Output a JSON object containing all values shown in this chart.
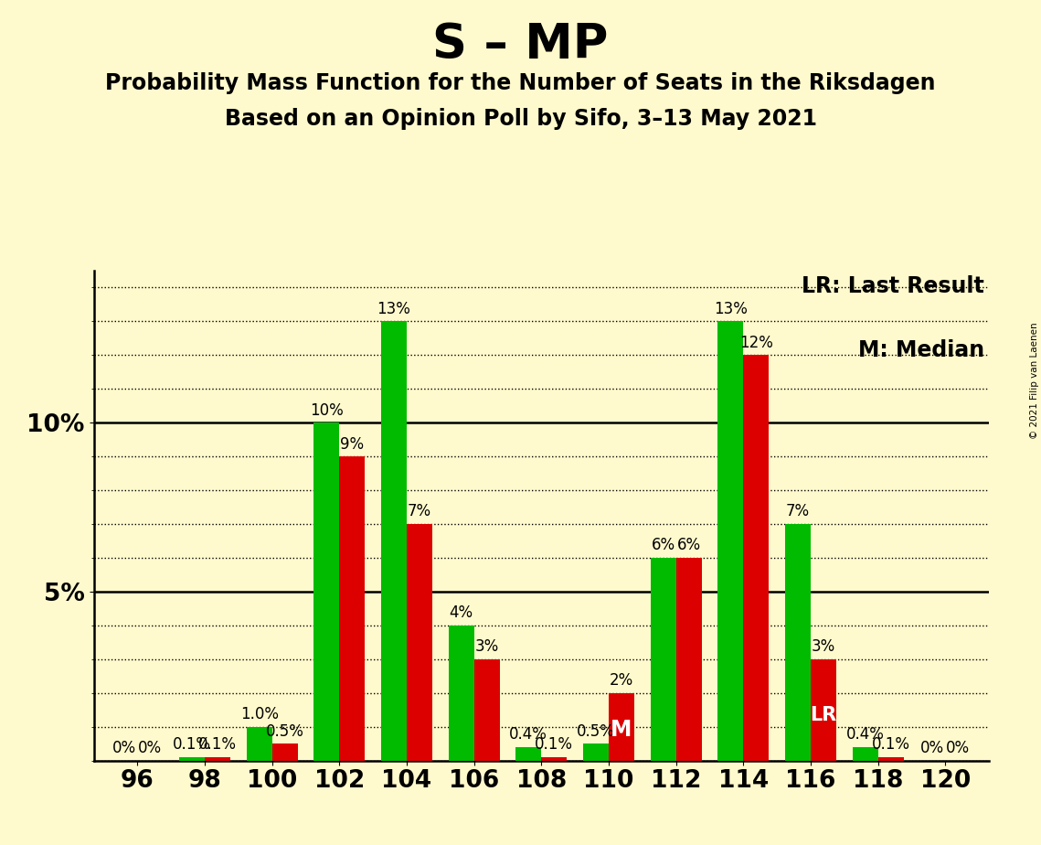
{
  "title": "S – MP",
  "subtitle1": "Probability Mass Function for the Number of Seats in the Riksdagen",
  "subtitle2": "Based on an Opinion Poll by Sifo, 3–13 May 2021",
  "copyright": "© 2021 Filip van Laenen",
  "legend_lr": "LR: Last Result",
  "legend_m": "M: Median",
  "seats": [
    96,
    98,
    100,
    102,
    104,
    106,
    108,
    110,
    112,
    114,
    116,
    118,
    120
  ],
  "green_values": [
    0.0,
    0.1,
    1.0,
    10.0,
    13.0,
    4.0,
    0.4,
    0.5,
    6.0,
    13.0,
    7.0,
    0.4,
    0.0
  ],
  "red_values": [
    0.0,
    0.1,
    0.5,
    9.0,
    7.0,
    3.0,
    0.1,
    2.0,
    6.0,
    12.0,
    3.0,
    0.1,
    0.0
  ],
  "green_labels": [
    "0%",
    "0.1%",
    "1.0%",
    "10%",
    "13%",
    "4%",
    "0.4%",
    "0.5%",
    "6%",
    "13%",
    "7%",
    "0.4%",
    "0%"
  ],
  "red_labels": [
    "0%",
    "0.1%",
    "0.5%",
    "9%",
    "7%",
    "3%",
    "0.1%",
    "2%",
    "6%",
    "12%",
    "3%",
    "0.1%",
    "0%"
  ],
  "median_seat": 110,
  "lr_seat": 116,
  "green_color": "#00BB00",
  "red_color": "#DD0000",
  "background_color": "#FFFACD",
  "bar_width": 0.38,
  "ylim": [
    0,
    14.5
  ],
  "ylabel_ticks": [
    5,
    10
  ],
  "ylabel_labels": [
    "5%",
    "10%"
  ],
  "title_fontsize": 38,
  "subtitle_fontsize": 17,
  "label_fontsize": 12,
  "axis_fontsize": 19
}
